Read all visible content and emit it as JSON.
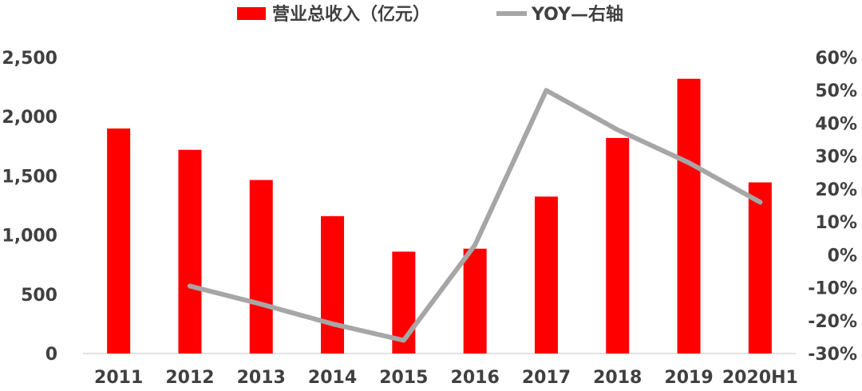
{
  "chart_data": {
    "type": "bar",
    "categories": [
      "2011",
      "2012",
      "2013",
      "2014",
      "2015",
      "2016",
      "2017",
      "2018",
      "2019",
      "2020H1"
    ],
    "series": [
      {
        "name": "营业总收入（亿元）",
        "type": "bar",
        "axis": "left",
        "color": "#ff0000",
        "values": [
          1900,
          1720,
          1465,
          1160,
          860,
          885,
          1325,
          1820,
          2320,
          1445
        ]
      },
      {
        "name": "YOY—右轴",
        "type": "line",
        "axis": "right",
        "color": "#a6a6a6",
        "values": [
          null,
          -9.5,
          -15,
          -21,
          -26,
          3,
          50,
          38,
          28,
          16
        ]
      }
    ],
    "y_left": {
      "ylim": [
        0,
        2500
      ],
      "ticks": [
        0,
        500,
        1000,
        1500,
        2000,
        2500
      ],
      "tick_labels": [
        "0",
        "500",
        "1,000",
        "1,500",
        "2,000",
        "2,500"
      ]
    },
    "y_right": {
      "ylim": [
        -30,
        60
      ],
      "ticks": [
        -30,
        -20,
        -10,
        0,
        10,
        20,
        30,
        40,
        50,
        60
      ],
      "tick_labels": [
        "-30%",
        "-20%",
        "-10%",
        "0%",
        "10%",
        "20%",
        "30%",
        "40%",
        "50%",
        "60%"
      ]
    },
    "legend_position": "top-center",
    "grid": false
  }
}
